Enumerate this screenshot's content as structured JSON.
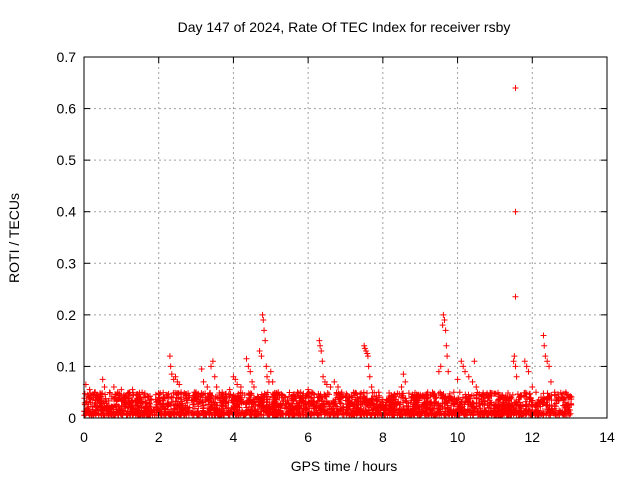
{
  "chart_data": {
    "type": "scatter",
    "title": "Day 147 of 2024, Rate Of TEC Index for receiver rsby",
    "xlabel": "GPS time / hours",
    "ylabel": "ROTI / TECUs",
    "xlim": [
      0,
      14
    ],
    "ylim": [
      0,
      0.7
    ],
    "x_ticks": [
      0,
      2,
      4,
      6,
      8,
      10,
      12,
      14
    ],
    "y_ticks": [
      0,
      0.1,
      0.2,
      0.3,
      0.4,
      0.5,
      0.6,
      0.7
    ],
    "x_tick_labels": [
      "0",
      "2",
      "4",
      "6",
      "8",
      "10",
      "12",
      "14"
    ],
    "y_tick_labels": [
      "0",
      "0.1",
      "0.2",
      "0.3",
      "0.4",
      "0.5",
      "0.6",
      "0.7"
    ],
    "grid": true,
    "marker": "+",
    "color": "#ff0000",
    "x_range_data": [
      0,
      13.05
    ],
    "series": [
      {
        "name": "ROTI",
        "points": [
          [
            0.05,
            0.065
          ],
          [
            0.1,
            0.045
          ],
          [
            0.15,
            0.055
          ],
          [
            0.3,
            0.05
          ],
          [
            0.5,
            0.075
          ],
          [
            0.55,
            0.06
          ],
          [
            0.8,
            0.06
          ],
          [
            0.9,
            0.05
          ],
          [
            1.0,
            0.055
          ],
          [
            1.1,
            0.04
          ],
          [
            1.3,
            0.055
          ],
          [
            1.4,
            0.045
          ],
          [
            1.6,
            0.04
          ],
          [
            1.8,
            0.035
          ],
          [
            2.0,
            0.04
          ],
          [
            2.2,
            0.045
          ],
          [
            2.3,
            0.12
          ],
          [
            2.32,
            0.1
          ],
          [
            2.35,
            0.085
          ],
          [
            2.4,
            0.075
          ],
          [
            2.45,
            0.08
          ],
          [
            2.5,
            0.07
          ],
          [
            2.55,
            0.065
          ],
          [
            2.6,
            0.05
          ],
          [
            2.8,
            0.04
          ],
          [
            3.0,
            0.05
          ],
          [
            3.15,
            0.095
          ],
          [
            3.2,
            0.07
          ],
          [
            3.3,
            0.06
          ],
          [
            3.4,
            0.1
          ],
          [
            3.45,
            0.11
          ],
          [
            3.5,
            0.08
          ],
          [
            3.55,
            0.06
          ],
          [
            3.7,
            0.05
          ],
          [
            3.9,
            0.055
          ],
          [
            4.0,
            0.08
          ],
          [
            4.05,
            0.075
          ],
          [
            4.1,
            0.065
          ],
          [
            4.2,
            0.06
          ],
          [
            4.35,
            0.115
          ],
          [
            4.4,
            0.1
          ],
          [
            4.45,
            0.09
          ],
          [
            4.5,
            0.07
          ],
          [
            4.55,
            0.06
          ],
          [
            4.7,
            0.13
          ],
          [
            4.75,
            0.12
          ],
          [
            4.78,
            0.2
          ],
          [
            4.8,
            0.19
          ],
          [
            4.82,
            0.17
          ],
          [
            4.85,
            0.15
          ],
          [
            4.88,
            0.1
          ],
          [
            4.9,
            0.08
          ],
          [
            4.95,
            0.07
          ],
          [
            5.0,
            0.09
          ],
          [
            5.05,
            0.07
          ],
          [
            5.2,
            0.05
          ],
          [
            5.4,
            0.04
          ],
          [
            5.6,
            0.045
          ],
          [
            5.8,
            0.05
          ],
          [
            6.0,
            0.055
          ],
          [
            6.1,
            0.05
          ],
          [
            6.3,
            0.15
          ],
          [
            6.32,
            0.14
          ],
          [
            6.35,
            0.13
          ],
          [
            6.38,
            0.11
          ],
          [
            6.4,
            0.08
          ],
          [
            6.45,
            0.07
          ],
          [
            6.5,
            0.065
          ],
          [
            6.6,
            0.06
          ],
          [
            6.7,
            0.07
          ],
          [
            6.8,
            0.06
          ],
          [
            6.9,
            0.05
          ],
          [
            7.1,
            0.04
          ],
          [
            7.3,
            0.035
          ],
          [
            7.5,
            0.14
          ],
          [
            7.52,
            0.135
          ],
          [
            7.55,
            0.13
          ],
          [
            7.58,
            0.125
          ],
          [
            7.6,
            0.12
          ],
          [
            7.62,
            0.1
          ],
          [
            7.65,
            0.08
          ],
          [
            7.7,
            0.06
          ],
          [
            7.9,
            0.04
          ],
          [
            8.1,
            0.035
          ],
          [
            8.3,
            0.045
          ],
          [
            8.5,
            0.06
          ],
          [
            8.55,
            0.085
          ],
          [
            8.6,
            0.07
          ],
          [
            8.8,
            0.04
          ],
          [
            9.0,
            0.045
          ],
          [
            9.2,
            0.05
          ],
          [
            9.5,
            0.09
          ],
          [
            9.55,
            0.1
          ],
          [
            9.6,
            0.18
          ],
          [
            9.62,
            0.2
          ],
          [
            9.65,
            0.19
          ],
          [
            9.68,
            0.17
          ],
          [
            9.7,
            0.14
          ],
          [
            9.72,
            0.12
          ],
          [
            9.75,
            0.09
          ],
          [
            9.9,
            0.05
          ],
          [
            10.0,
            0.075
          ],
          [
            10.1,
            0.11
          ],
          [
            10.15,
            0.1
          ],
          [
            10.2,
            0.09
          ],
          [
            10.3,
            0.08
          ],
          [
            10.4,
            0.07
          ],
          [
            10.45,
            0.11
          ],
          [
            10.5,
            0.06
          ],
          [
            10.7,
            0.04
          ],
          [
            10.9,
            0.03
          ],
          [
            11.1,
            0.035
          ],
          [
            11.3,
            0.04
          ],
          [
            11.5,
            0.11
          ],
          [
            11.52,
            0.12
          ],
          [
            11.55,
            0.1
          ],
          [
            11.58,
            0.08
          ],
          [
            11.55,
            0.64
          ],
          [
            11.55,
            0.4
          ],
          [
            11.55,
            0.235
          ],
          [
            11.8,
            0.11
          ],
          [
            11.85,
            0.1
          ],
          [
            11.9,
            0.09
          ],
          [
            12.0,
            0.06
          ],
          [
            12.1,
            0.05
          ],
          [
            12.3,
            0.16
          ],
          [
            12.32,
            0.14
          ],
          [
            12.35,
            0.12
          ],
          [
            12.4,
            0.11
          ],
          [
            12.45,
            0.1
          ],
          [
            12.5,
            0.07
          ],
          [
            12.6,
            0.05
          ],
          [
            12.8,
            0.04
          ],
          [
            12.9,
            0.05
          ],
          [
            13.0,
            0.04
          ]
        ]
      }
    ]
  }
}
